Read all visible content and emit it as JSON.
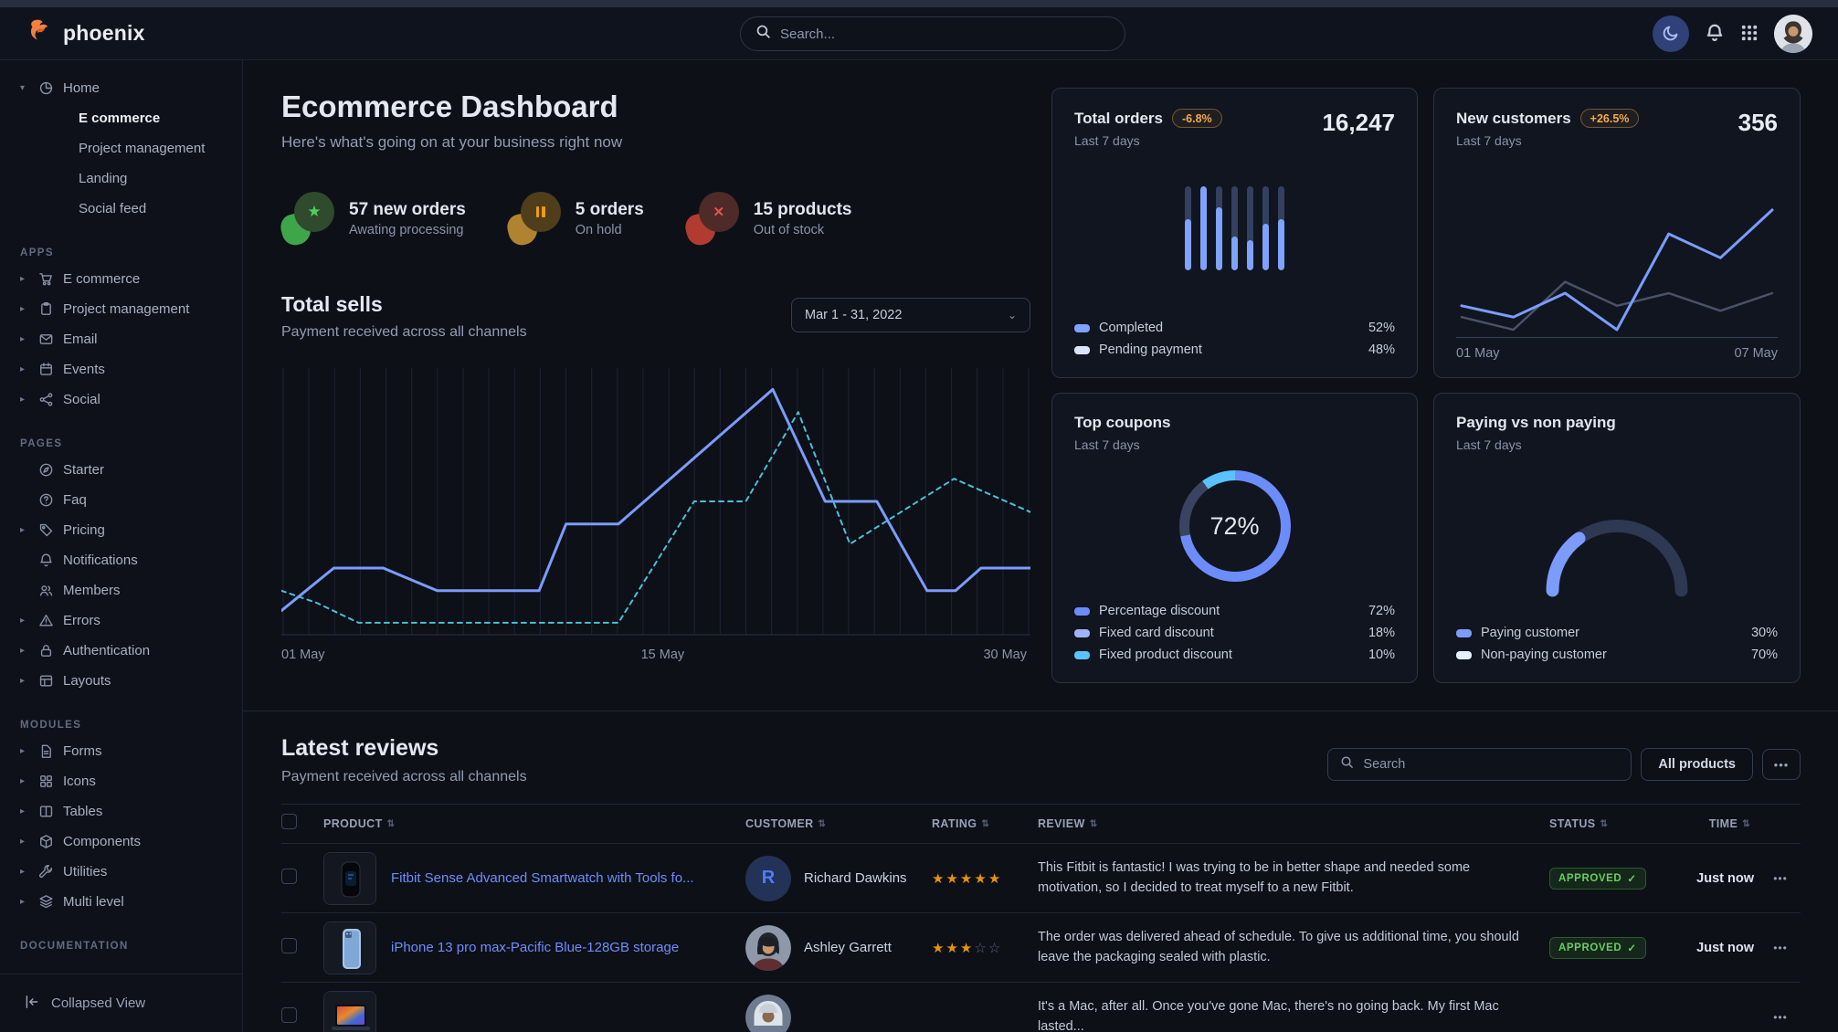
{
  "theme": {
    "primary": "#3874ff",
    "line_blue": "#7b9cff",
    "line_cyan": "#49c0db",
    "warning_text": "#f5a94c",
    "success_text": "#67cf63",
    "star_color": "#e5920f"
  },
  "navbar": {
    "brand": "phoenix",
    "search_placeholder": "Search...",
    "icons": [
      "moon-icon",
      "bell-icon",
      "apps-grid-icon",
      "user-avatar"
    ]
  },
  "sidebar": {
    "home": {
      "label": "Home",
      "icon": "pie-chart-icon",
      "children": [
        {
          "label": "E commerce",
          "active": true
        },
        {
          "label": "Project management"
        },
        {
          "label": "Landing"
        },
        {
          "label": "Social feed"
        }
      ]
    },
    "groups": [
      {
        "label": "APPS",
        "items": [
          {
            "label": "E commerce",
            "icon": "cart-icon"
          },
          {
            "label": "Project management",
            "icon": "clipboard-icon"
          },
          {
            "label": "Email",
            "icon": "envelope-icon"
          },
          {
            "label": "Events",
            "icon": "calendar-icon"
          },
          {
            "label": "Social",
            "icon": "share-icon"
          }
        ]
      },
      {
        "label": "PAGES",
        "items": [
          {
            "label": "Starter",
            "icon": "compass-icon"
          },
          {
            "label": "Faq",
            "icon": "circle-question-icon"
          },
          {
            "label": "Pricing",
            "icon": "tag-icon"
          },
          {
            "label": "Notifications",
            "icon": "bell-icon"
          },
          {
            "label": "Members",
            "icon": "users-icon"
          },
          {
            "label": "Errors",
            "icon": "warning-icon"
          },
          {
            "label": "Authentication",
            "icon": "lock-icon"
          },
          {
            "label": "Layouts",
            "icon": "layout-icon"
          }
        ]
      },
      {
        "label": "MODULES",
        "items": [
          {
            "label": "Forms",
            "icon": "file-icon"
          },
          {
            "label": "Icons",
            "icon": "grid-icon"
          },
          {
            "label": "Tables",
            "icon": "table-icon"
          },
          {
            "label": "Components",
            "icon": "cube-icon"
          },
          {
            "label": "Utilities",
            "icon": "wrench-icon"
          },
          {
            "label": "Multi level",
            "icon": "layers-icon"
          }
        ]
      },
      {
        "label": "DOCUMENTATION",
        "items": []
      }
    ],
    "footer": {
      "label": "Collapsed View",
      "icon": "collapse-left-icon"
    }
  },
  "header": {
    "title": "Ecommerce Dashboard",
    "subtitle": "Here's what's going on at your business right now"
  },
  "stats": [
    {
      "value": "57 new orders",
      "caption": "Awating processing",
      "icon": "star-icon",
      "blob_color": "#3fa54b",
      "circle_color": "#2f4a2c"
    },
    {
      "value": "5 orders",
      "caption": "On hold",
      "icon": "pause-icon",
      "blob_color": "#b08330",
      "circle_color": "#4f3e19"
    },
    {
      "value": "15 products",
      "caption": "Out of stock",
      "icon": "x-icon",
      "blob_color": "#b23b31",
      "circle_color": "#4e2a28"
    }
  ],
  "total_sells": {
    "title": "Total sells",
    "subtitle": "Payment received across all channels",
    "date_range": "Mar 1 - 31, 2022"
  },
  "cards": {
    "total_orders": {
      "title": "Total orders",
      "badge": "-6.8%",
      "period": "Last 7 days",
      "value": "16,247",
      "legend": [
        {
          "label": "Completed",
          "value": "52%",
          "swatch": "#7fa2fc"
        },
        {
          "label": "Pending payment",
          "value": "48%",
          "swatch": "#d9e5fd"
        }
      ]
    },
    "new_customers": {
      "title": "New customers",
      "badge": "+26.5%",
      "period": "Last 7 days",
      "value": "356",
      "x_left": "01 May",
      "x_right": "07 May"
    },
    "top_coupons": {
      "title": "Top coupons",
      "period": "Last 7 days",
      "center_label": "72%",
      "legend": [
        {
          "label": "Percentage discount",
          "value": "72%",
          "swatch": "#6c8cfa"
        },
        {
          "label": "Fixed card discount",
          "value": "18%",
          "swatch": "#9db4f9"
        },
        {
          "label": "Fixed product discount",
          "value": "10%",
          "swatch": "#58c3ff"
        }
      ]
    },
    "paying": {
      "title": "Paying vs non paying",
      "period": "Last 7 days",
      "legend": [
        {
          "label": "Paying customer",
          "value": "30%",
          "swatch": "#7d9bfb"
        },
        {
          "label": "Non-paying customer",
          "value": "70%",
          "swatch": "#e7eefc"
        }
      ]
    }
  },
  "chart_data": [
    {
      "id": "total_sells",
      "type": "line",
      "title": "Total sells",
      "x_ticks": [
        "01 May",
        "15 May",
        "30 May"
      ],
      "ylim": [
        0,
        100
      ],
      "grid": "vertical",
      "legend_position": "none",
      "series": [
        {
          "name": "current period",
          "style": "solid",
          "color": "#7b9cff",
          "points": [
            [
              0,
              9
            ],
            [
              7,
              25
            ],
            [
              13.6,
              25
            ],
            [
              20.8,
              16.5
            ],
            [
              34.4,
              16.5
            ],
            [
              38,
              41.5
            ],
            [
              45,
              41.5
            ],
            [
              65.6,
              92
            ],
            [
              72.6,
              50
            ],
            [
              79.5,
              50
            ],
            [
              86.2,
              16.5
            ],
            [
              90,
              16.5
            ],
            [
              93.4,
              25
            ],
            [
              100,
              25
            ]
          ]
        },
        {
          "name": "previous period",
          "style": "dashed",
          "color": "#49c0db",
          "points": [
            [
              0,
              16.5
            ],
            [
              4.7,
              12
            ],
            [
              10.3,
              4.5
            ],
            [
              45,
              4.5
            ],
            [
              55.1,
              50
            ],
            [
              62,
              50
            ],
            [
              69,
              83.5
            ],
            [
              75.9,
              34
            ],
            [
              89.8,
              58.5
            ],
            [
              100,
              46
            ]
          ]
        }
      ]
    },
    {
      "id": "total_orders",
      "type": "bar",
      "categories": [
        "1",
        "2",
        "3",
        "4",
        "5",
        "6",
        "7"
      ],
      "series": [
        {
          "name": "Completed",
          "color": "#7fa2fc",
          "values": [
            60,
            100,
            74,
            40,
            35,
            55,
            60
          ]
        },
        {
          "name": "Pending payment",
          "color": "#33405f",
          "values": [
            40,
            0,
            26,
            60,
            65,
            45,
            40
          ]
        }
      ]
    },
    {
      "id": "new_customers",
      "type": "line",
      "x_ticks": [
        "01 May",
        "07 May"
      ],
      "ylim": [
        0,
        100
      ],
      "series": [
        {
          "name": "current",
          "color": "#7b9cff",
          "width": 3,
          "values": [
            19,
            10,
            29,
            0,
            76,
            57,
            95
          ]
        },
        {
          "name": "previous",
          "color": "#4a5269",
          "width": 2.5,
          "values": [
            10,
            0,
            38,
            19,
            29,
            15,
            29
          ]
        }
      ]
    },
    {
      "id": "top_coupons",
      "type": "pie",
      "center_label": "72%",
      "slices": [
        {
          "label": "Percentage discount",
          "value": 72,
          "color": "#6c8cfa"
        },
        {
          "label": "Fixed card discount",
          "value": 18,
          "color": "#3a4460"
        },
        {
          "label": "Fixed product discount",
          "value": 10,
          "color": "#58c3ff"
        }
      ]
    },
    {
      "id": "paying_gauge",
      "type": "pie",
      "shape": "half-gauge",
      "value": 30,
      "slices": [
        {
          "label": "Paying customer",
          "value": 30,
          "color": "#7d9bfb"
        },
        {
          "label": "Non-paying customer",
          "value": 70,
          "color": "#2e3852"
        }
      ]
    }
  ],
  "reviews": {
    "title": "Latest reviews",
    "subtitle": "Payment received across all channels",
    "search_placeholder": "Search",
    "filter_label": "All products",
    "columns": [
      "PRODUCT",
      "CUSTOMER",
      "RATING",
      "REVIEW",
      "STATUS",
      "TIME"
    ],
    "rows": [
      {
        "product": "Fitbit Sense Advanced Smartwatch with Tools fo...",
        "customer": "Richard Dawkins",
        "avatar_initial": "R",
        "rating": 5,
        "review": "This Fitbit is fantastic! I was trying to be in better shape and needed some motivation, so I decided to treat myself to a new Fitbit.",
        "status": "APPROVED",
        "time": "Just now"
      },
      {
        "product": "iPhone 13 pro max-Pacific Blue-128GB storage",
        "customer": "Ashley Garrett",
        "avatar_initial": "",
        "rating": 3,
        "review": "The order was delivered ahead of schedule. To give us additional time, you should leave the packaging sealed with plastic.",
        "status": "APPROVED",
        "time": "Just now"
      },
      {
        "product": "",
        "customer": "",
        "avatar_initial": "",
        "rating": null,
        "review": "It's a Mac, after all. Once you've gone Mac, there's no going back. My first Mac lasted...",
        "status": "",
        "time": ""
      }
    ]
  }
}
